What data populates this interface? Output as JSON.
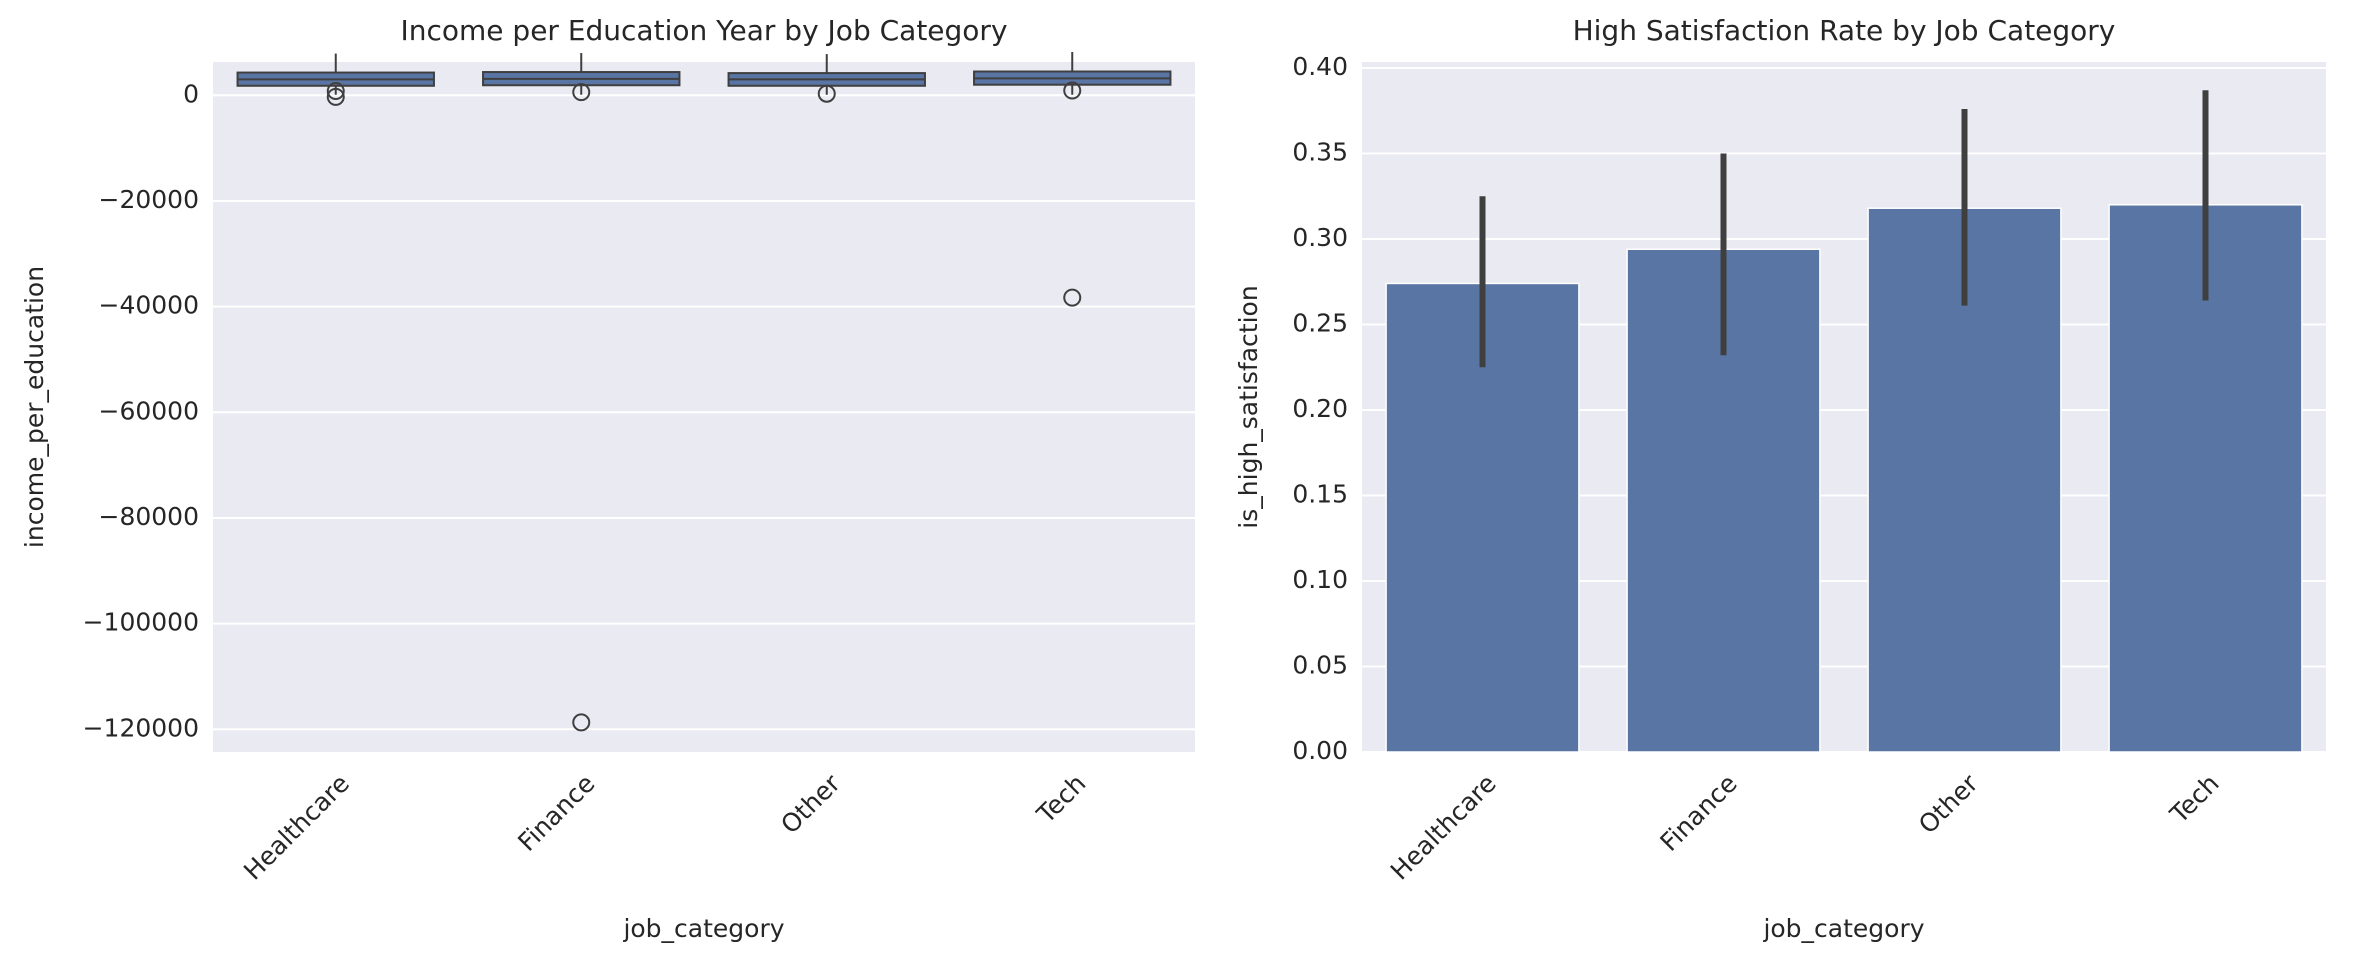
{
  "chart_data": [
    {
      "type": "box",
      "title": "Income per Education Year by Job Category",
      "xlabel": "job_category",
      "ylabel": "income_per_education",
      "categories": [
        "Healthcare",
        "Finance",
        "Other",
        "Tech"
      ],
      "color": "#5975a4",
      "boxes": [
        {
          "whisker_low": 100,
          "q1": 1800,
          "median": 3000,
          "q3": 4300,
          "whisker_high": 7900,
          "outliers": [
            -300,
            800
          ]
        },
        {
          "whisker_low": 100,
          "q1": 1900,
          "median": 3100,
          "q3": 4400,
          "whisker_high": 8000,
          "outliers": [
            600,
            -118700
          ]
        },
        {
          "whisker_low": 100,
          "q1": 1800,
          "median": 3000,
          "q3": 4200,
          "whisker_high": 7800,
          "outliers": [
            300
          ]
        },
        {
          "whisker_low": 100,
          "q1": 2000,
          "median": 3200,
          "q3": 4500,
          "whisker_high": 8200,
          "outliers": [
            900,
            -38300
          ]
        }
      ],
      "ylim": [
        -124300,
        6300
      ],
      "yticks": [
        0,
        {
          "value": -20000,
          "label": "−20000"
        },
        {
          "value": -40000,
          "label": "−40000"
        },
        {
          "value": -60000,
          "label": "−60000"
        },
        {
          "value": -80000,
          "label": "−80000"
        },
        {
          "value": -100000,
          "label": "−100000"
        },
        {
          "value": -120000,
          "label": "−120000"
        }
      ],
      "grid": true
    },
    {
      "type": "bar",
      "title": "High Satisfaction Rate by Job Category",
      "xlabel": "job_category",
      "ylabel": "is_high_satisfaction",
      "categories": [
        "Healthcare",
        "Finance",
        "Other",
        "Tech"
      ],
      "series": [
        {
          "color": "#5975a4",
          "values": [
            0.274,
            0.294,
            0.318,
            0.32
          ],
          "error_low": [
            0.225,
            0.232,
            0.261,
            0.264
          ],
          "error_high": [
            0.325,
            0.35,
            0.376,
            0.387
          ]
        }
      ],
      "ylim": [
        0,
        0.4035
      ],
      "yticks": [
        {
          "value": 0,
          "label": "0.00"
        },
        {
          "value": 0.05,
          "label": "0.05"
        },
        {
          "value": 0.1,
          "label": "0.10"
        },
        {
          "value": 0.15,
          "label": "0.15"
        },
        {
          "value": 0.2,
          "label": "0.20"
        },
        {
          "value": 0.25,
          "label": "0.25"
        },
        {
          "value": 0.3,
          "label": "0.30"
        },
        {
          "value": 0.35,
          "label": "0.35"
        },
        {
          "value": 0.4,
          "label": "0.40"
        }
      ],
      "grid": true
    }
  ]
}
